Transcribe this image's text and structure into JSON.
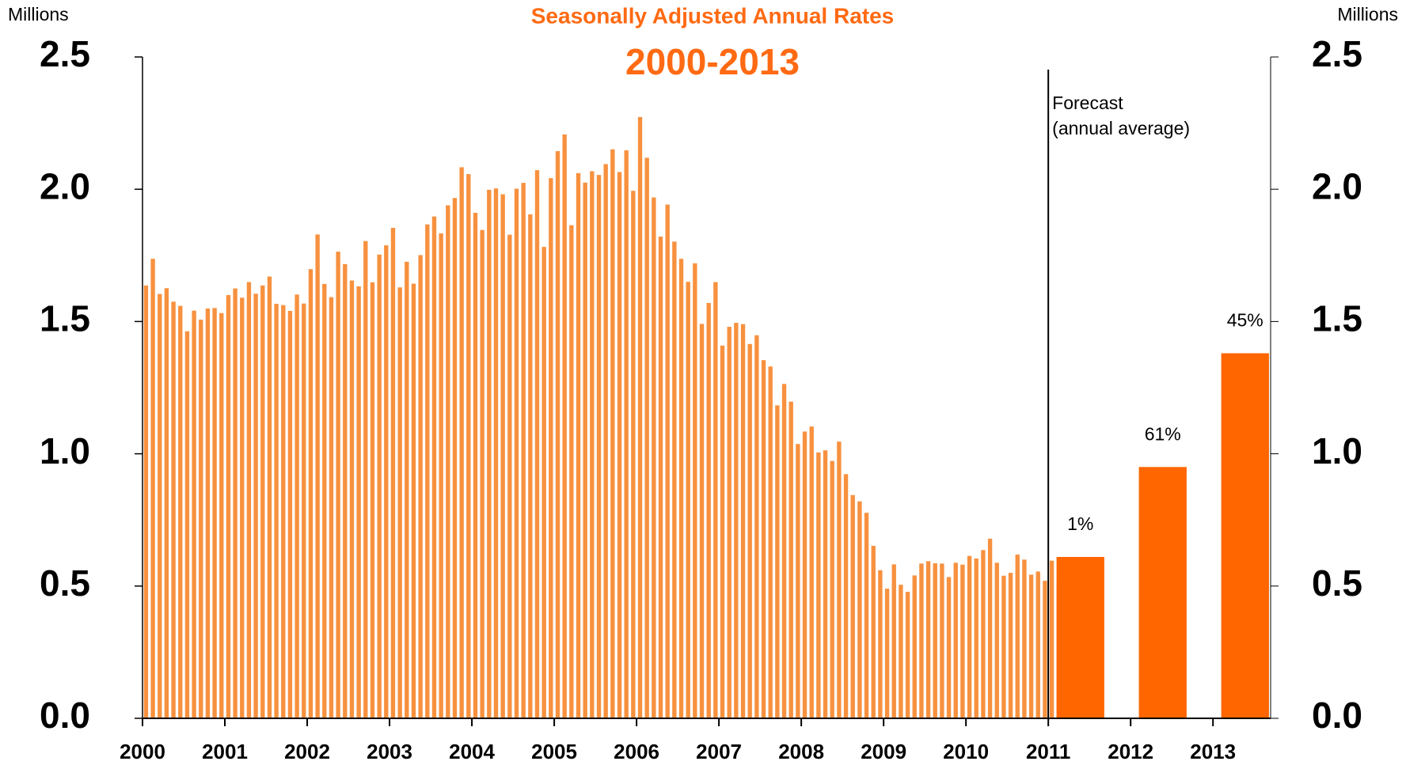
{
  "chart_data": {
    "type": "bar",
    "title": "Seasonally Adjusted Annual Rates",
    "subtitle": "2000-2013",
    "y_label": "Millions",
    "y2_label": "Millions",
    "annotation": [
      "Forecast",
      "(annual average)"
    ],
    "xlim": [
      2000,
      2013.7
    ],
    "xticks": [
      2000,
      2001,
      2002,
      2003,
      2004,
      2005,
      2006,
      2007,
      2008,
      2009,
      2010,
      2011,
      2012,
      2013
    ],
    "ylim": [
      0,
      2.5
    ],
    "yticks": [
      {
        "value": 0,
        "label": "0.0"
      },
      0.5,
      {
        "value": 1,
        "label": "1.0"
      },
      1.5,
      {
        "value": 2,
        "label": "2.0"
      },
      2.5
    ],
    "y2lim": [
      0,
      2.5
    ],
    "y2ticks": [
      {
        "value": 0,
        "label": "0.0"
      },
      0.5,
      {
        "value": 1,
        "label": "1.0"
      },
      1.5,
      {
        "value": 2,
        "label": "2.0"
      },
      2.5
    ],
    "monthly": {
      "color": "#f7913f",
      "values": [
        1.636,
        1.737,
        1.604,
        1.626,
        1.575,
        1.559,
        1.463,
        1.541,
        1.507,
        1.549,
        1.551,
        1.532,
        1.6,
        1.625,
        1.59,
        1.649,
        1.605,
        1.636,
        1.67,
        1.567,
        1.562,
        1.54,
        1.602,
        1.568,
        1.698,
        1.829,
        1.642,
        1.592,
        1.764,
        1.717,
        1.655,
        1.633,
        1.804,
        1.648,
        1.753,
        1.788,
        1.854,
        1.629,
        1.726,
        1.643,
        1.751,
        1.867,
        1.897,
        1.833,
        1.939,
        1.967,
        2.083,
        2.057,
        1.911,
        1.846,
        1.998,
        2.003,
        1.981,
        1.828,
        2.002,
        2.024,
        1.905,
        2.072,
        1.782,
        2.042,
        2.144,
        2.207,
        1.864,
        2.061,
        2.025,
        2.068,
        2.054,
        2.095,
        2.151,
        2.065,
        2.147,
        1.994,
        2.273,
        2.119,
        1.969,
        1.821,
        1.942,
        1.802,
        1.737,
        1.65,
        1.72,
        1.491,
        1.57,
        1.649,
        1.409,
        1.48,
        1.495,
        1.49,
        1.415,
        1.448,
        1.354,
        1.33,
        1.183,
        1.264,
        1.197,
        1.037,
        1.084,
        1.103,
        1.005,
        1.013,
        0.973,
        1.046,
        0.923,
        0.844,
        0.82,
        0.777,
        0.652,
        0.56,
        0.49,
        0.582,
        0.505,
        0.478,
        0.54,
        0.585,
        0.594,
        0.586,
        0.585,
        0.534,
        0.588,
        0.581,
        0.614,
        0.604,
        0.636,
        0.679,
        0.588,
        0.539,
        0.55,
        0.619,
        0.6,
        0.543,
        0.555,
        0.52,
        0.596,
        0.512,
        0.585,
        0.54,
        0.56
      ]
    },
    "forecast": {
      "color": "#ff6600",
      "x": [
        2011,
        2012,
        2013
      ],
      "values": [
        0.61,
        0.95,
        1.38
      ],
      "labels": [
        "1%",
        "61%",
        "45%"
      ]
    }
  }
}
